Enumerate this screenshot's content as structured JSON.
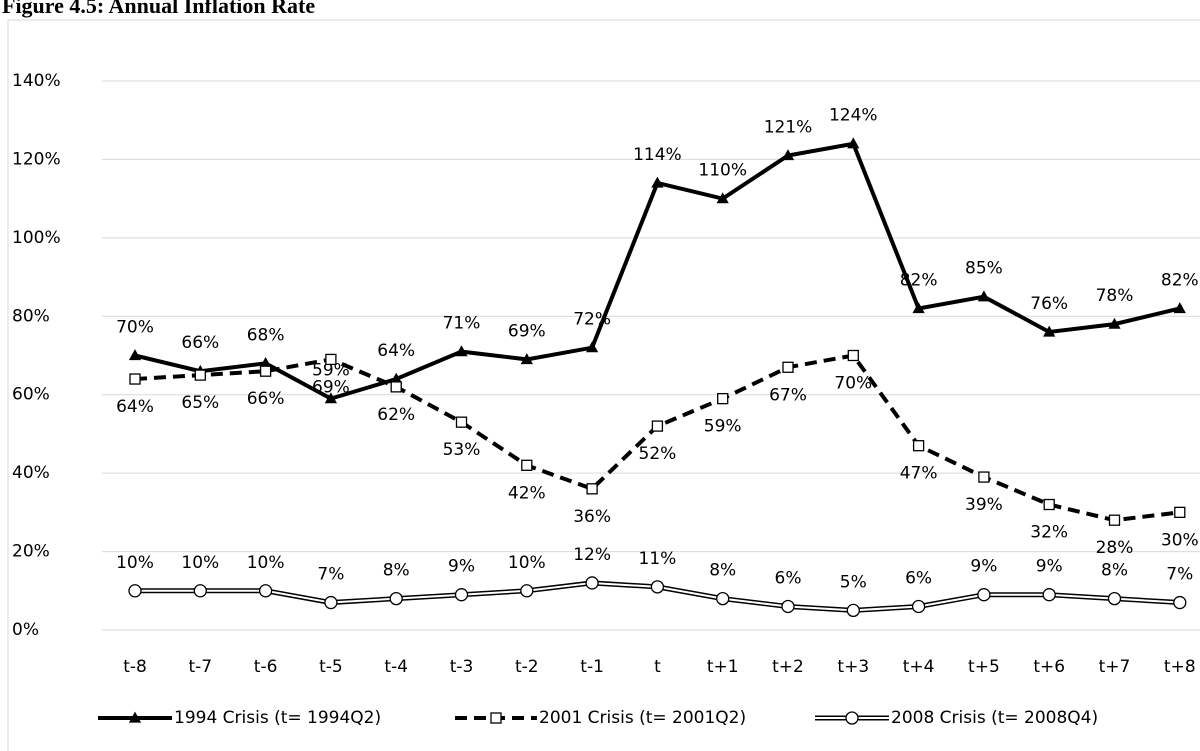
{
  "chart_data": {
    "type": "line",
    "title": "Figure 4.5: Annual Inflation Rate",
    "categories": [
      "t-8",
      "t-7",
      "t-6",
      "t-5",
      "t-4",
      "t-3",
      "t-2",
      "t-1",
      "t",
      "t+1",
      "t+2",
      "t+3",
      "t+4",
      "t+5",
      "t+6",
      "t+7",
      "t+8"
    ],
    "series": [
      {
        "name": "1994 Crisis (t= 1994Q2)",
        "color": "#000000",
        "dash": "solid",
        "marker": "triangle",
        "double": false,
        "values": [
          70,
          66,
          68,
          59,
          64,
          71,
          69,
          72,
          114,
          110,
          121,
          124,
          82,
          85,
          76,
          78,
          82
        ],
        "value_labels": [
          "70%",
          "66%",
          "68%",
          "59%",
          "64%",
          "71%",
          "69%",
          "72%",
          "114%",
          "110%",
          "121%",
          "124%",
          "82%",
          "85%",
          "76%",
          "78%",
          "82%"
        ]
      },
      {
        "name": "2001 Crisis (t= 2001Q2)",
        "color": "#000000",
        "dash": "dashed",
        "marker": "square",
        "double": false,
        "values": [
          64,
          65,
          66,
          69,
          62,
          53,
          42,
          36,
          52,
          59,
          67,
          70,
          47,
          39,
          32,
          28,
          30
        ],
        "value_labels": [
          "64%",
          "65%",
          "66%",
          "69%",
          "62%",
          "53%",
          "42%",
          "36%",
          "52%",
          "59%",
          "67%",
          "70%",
          "47%",
          "39%",
          "32%",
          "28%",
          "30%"
        ]
      },
      {
        "name": "2008 Crisis (t= 2008Q4)",
        "color": "#000000",
        "dash": "solid",
        "marker": "circle",
        "double": true,
        "values": [
          10,
          10,
          10,
          7,
          8,
          9,
          10,
          12,
          11,
          8,
          6,
          5,
          6,
          9,
          9,
          8,
          7
        ],
        "value_labels": [
          "10%",
          "10%",
          "10%",
          "7%",
          "8%",
          "9%",
          "10%",
          "12%",
          "11%",
          "8%",
          "6%",
          "5%",
          "6%",
          "9%",
          "9%",
          "8%",
          "7%"
        ]
      }
    ],
    "ylim": [
      0,
      140
    ],
    "yticks": [
      {
        "value": 0,
        "label": "0%"
      },
      {
        "value": 20,
        "label": "20%"
      },
      {
        "value": 40,
        "label": "40%"
      },
      {
        "value": 60,
        "label": "60%"
      },
      {
        "value": 80,
        "label": "80%"
      },
      {
        "value": 100,
        "label": "100%"
      },
      {
        "value": 120,
        "label": "120%"
      },
      {
        "value": 140,
        "label": "140%"
      }
    ],
    "grid": true,
    "legend": "bottom"
  }
}
